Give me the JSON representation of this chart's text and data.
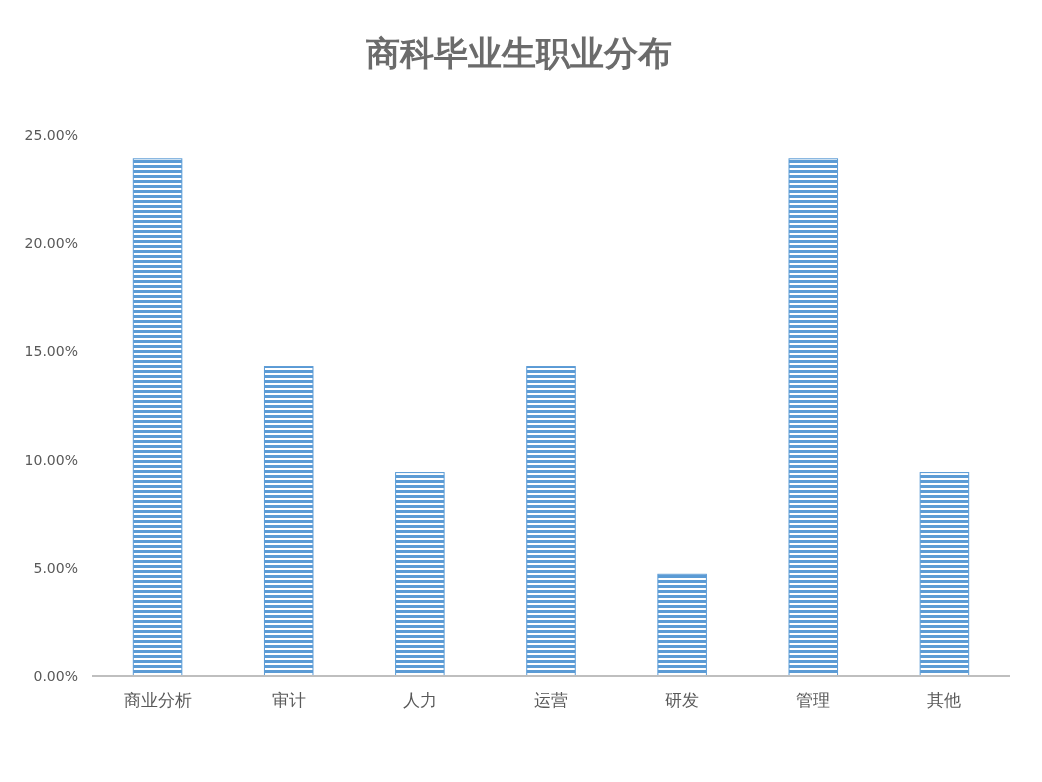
{
  "chart_data": {
    "type": "bar",
    "title": "商科毕业生职业分布",
    "categories": [
      "商业分析",
      "审计",
      "人力",
      "运营",
      "研发",
      "管理",
      "其他"
    ],
    "values": [
      23.9,
      14.3,
      9.4,
      14.3,
      4.7,
      23.9,
      9.4
    ],
    "color": "#5b9bd5",
    "ylim": [
      0,
      25
    ],
    "yticks": [
      {
        "value": 0,
        "label": "0.00%"
      },
      {
        "value": 5,
        "label": "5.00%"
      },
      {
        "value": 10,
        "label": "10.00%"
      },
      {
        "value": 15,
        "label": "15.00%"
      },
      {
        "value": 20,
        "label": "20.00%"
      },
      {
        "value": 25,
        "label": "25.00%"
      }
    ],
    "grid": false
  }
}
